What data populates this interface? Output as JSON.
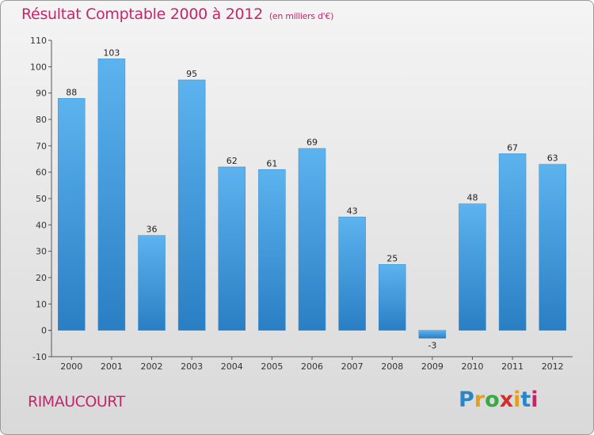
{
  "header": {
    "title": "Résultat Comptable 2000 à 2012",
    "subtitle": "(en milliers d'€)"
  },
  "commune": "RIMAUCOURT",
  "logo": {
    "letters": [
      "P",
      "r",
      "o",
      "x",
      "i",
      "t",
      "i"
    ],
    "colors": [
      "#2a86c8",
      "#e2a020",
      "#39a845",
      "#d0302c",
      "#e2a020",
      "#2a86c8",
      "#c4266a"
    ]
  },
  "chart_data": {
    "type": "bar",
    "title": "Résultat Comptable 2000 à 2012",
    "subtitle": "(en milliers d'€)",
    "xlabel": "",
    "ylabel": "",
    "categories": [
      "2000",
      "2001",
      "2002",
      "2003",
      "2004",
      "2005",
      "2006",
      "2007",
      "2008",
      "2009",
      "2010",
      "2011",
      "2012"
    ],
    "values": [
      88,
      103,
      36,
      95,
      62,
      61,
      69,
      43,
      25,
      -3,
      48,
      67,
      63
    ],
    "ylim": [
      -10,
      110
    ],
    "yticks": [
      -10,
      0,
      10,
      20,
      30,
      40,
      50,
      60,
      70,
      80,
      90,
      100,
      110
    ],
    "grid": false,
    "bar_color": "#4da6e6"
  }
}
